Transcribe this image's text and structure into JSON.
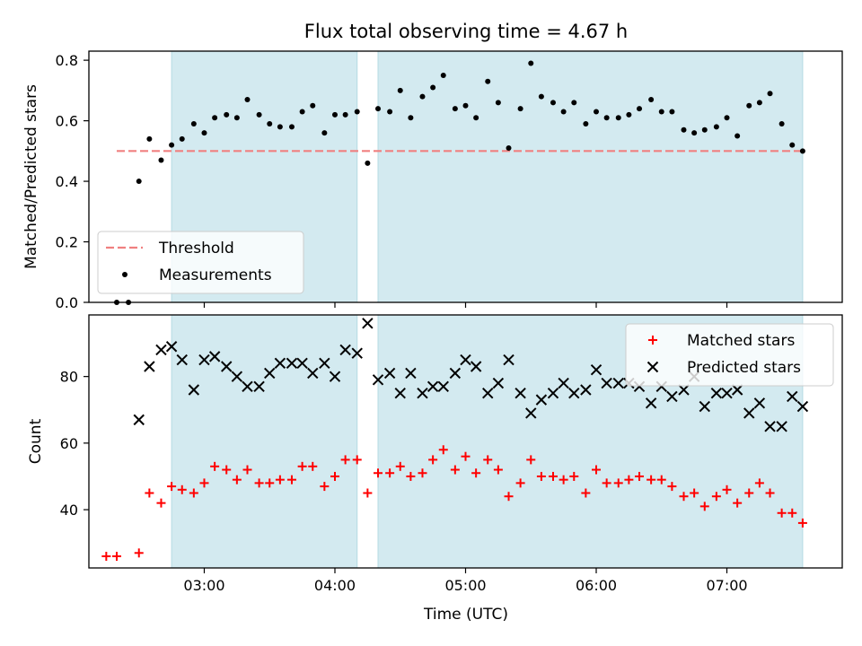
{
  "chart_data": {
    "type": "scatter",
    "title": "Flux total observing time = 4.67 h",
    "xlabel": "Time (UTC)",
    "x_tick_labels": [
      "03:00",
      "04:00",
      "05:00",
      "06:00",
      "07:00"
    ],
    "x_ticks_hours": [
      3,
      4,
      5,
      6,
      7
    ],
    "xlim_hours": [
      2.117,
      7.883
    ],
    "shaded_intervals_hours": [
      [
        2.75,
        4.17
      ],
      [
        4.33,
        7.58
      ]
    ],
    "shade_color": "#d3eaf0",
    "panels": [
      {
        "ylabel": "Matched/Predicted stars",
        "ylim": [
          0,
          0.83
        ],
        "y_tick_labels": [
          "0.0",
          "0.2",
          "0.4",
          "0.6",
          "0.8"
        ],
        "y_ticks": [
          0,
          0.2,
          0.4,
          0.6,
          0.8
        ],
        "legend_position": "lower-left",
        "legend": [
          "Threshold",
          "Measurements"
        ],
        "threshold": {
          "name": "Threshold",
          "value": 0.5,
          "x_range_hours": [
            2.33,
            7.58
          ],
          "color": "#f08080"
        },
        "series": [
          {
            "name": "Measurements",
            "marker": "dot",
            "color": "#000000",
            "x_hours": [
              2.33,
              2.42,
              2.5,
              2.58,
              2.67,
              2.75,
              2.83,
              2.92,
              3.0,
              3.08,
              3.17,
              3.25,
              3.33,
              3.42,
              3.5,
              3.58,
              3.67,
              3.75,
              3.83,
              3.92,
              4.0,
              4.08,
              4.17,
              4.25,
              4.33,
              4.42,
              4.5,
              4.58,
              4.67,
              4.75,
              4.83,
              4.92,
              5.0,
              5.08,
              5.17,
              5.25,
              5.33,
              5.42,
              5.5,
              5.58,
              5.67,
              5.75,
              5.83,
              5.92,
              6.0,
              6.08,
              6.17,
              6.25,
              6.33,
              6.42,
              6.5,
              6.58,
              6.67,
              6.75,
              6.83,
              6.92,
              7.0,
              7.08,
              7.17,
              7.25,
              7.33,
              7.42,
              7.5,
              7.58
            ],
            "y": [
              0.0,
              0.0,
              0.4,
              0.54,
              0.47,
              0.52,
              0.54,
              0.59,
              0.56,
              0.61,
              0.62,
              0.61,
              0.67,
              0.62,
              0.59,
              0.58,
              0.58,
              0.63,
              0.65,
              0.56,
              0.62,
              0.62,
              0.63,
              0.46,
              0.64,
              0.63,
              0.7,
              0.61,
              0.68,
              0.71,
              0.75,
              0.64,
              0.65,
              0.61,
              0.73,
              0.66,
              0.51,
              0.64,
              0.79,
              0.68,
              0.66,
              0.63,
              0.66,
              0.59,
              0.63,
              0.61,
              0.61,
              0.62,
              0.64,
              0.67,
              0.63,
              0.63,
              0.57,
              0.56,
              0.57,
              0.58,
              0.61,
              0.55,
              0.65,
              0.66,
              0.69,
              0.59,
              0.52,
              0.5
            ]
          }
        ]
      },
      {
        "ylabel": "Count",
        "ylim": [
          22.5,
          98.5
        ],
        "y_tick_labels": [
          "40",
          "60",
          "80"
        ],
        "y_ticks": [
          40,
          60,
          80
        ],
        "legend_position": "upper-right",
        "legend": [
          "Matched stars",
          "Predicted stars"
        ],
        "series": [
          {
            "name": "Matched stars",
            "marker": "plus",
            "color": "#ff0000",
            "x_hours": [
              2.25,
              2.33,
              2.5,
              2.58,
              2.67,
              2.75,
              2.83,
              2.92,
              3.0,
              3.08,
              3.17,
              3.25,
              3.33,
              3.42,
              3.5,
              3.58,
              3.67,
              3.75,
              3.83,
              3.92,
              4.0,
              4.08,
              4.17,
              4.25,
              4.33,
              4.42,
              4.5,
              4.58,
              4.67,
              4.75,
              4.83,
              4.92,
              5.0,
              5.08,
              5.17,
              5.25,
              5.33,
              5.42,
              5.5,
              5.58,
              5.67,
              5.75,
              5.83,
              5.92,
              6.0,
              6.08,
              6.17,
              6.25,
              6.33,
              6.42,
              6.5,
              6.58,
              6.67,
              6.75,
              6.83,
              6.92,
              7.0,
              7.08,
              7.17,
              7.25,
              7.33,
              7.42,
              7.5,
              7.58
            ],
            "y": [
              26,
              26,
              27,
              45,
              42,
              47,
              46,
              45,
              48,
              53,
              52,
              49,
              52,
              48,
              48,
              49,
              49,
              53,
              53,
              47,
              50,
              55,
              55,
              45,
              51,
              51,
              53,
              50,
              51,
              55,
              58,
              52,
              56,
              51,
              55,
              52,
              44,
              48,
              55,
              50,
              50,
              49,
              50,
              45,
              52,
              48,
              48,
              49,
              50,
              49,
              49,
              47,
              44,
              45,
              41,
              44,
              46,
              42,
              45,
              48,
              45,
              39,
              39,
              36
            ]
          },
          {
            "name": "Predicted stars",
            "marker": "cross",
            "color": "#000000",
            "x_hours": [
              2.5,
              2.58,
              2.67,
              2.75,
              2.83,
              2.92,
              3.0,
              3.08,
              3.17,
              3.25,
              3.33,
              3.42,
              3.5,
              3.58,
              3.67,
              3.75,
              3.83,
              3.92,
              4.0,
              4.08,
              4.17,
              4.25,
              4.33,
              4.42,
              4.5,
              4.58,
              4.67,
              4.75,
              4.83,
              4.92,
              5.0,
              5.08,
              5.17,
              5.25,
              5.33,
              5.42,
              5.5,
              5.58,
              5.67,
              5.75,
              5.83,
              5.92,
              6.0,
              6.08,
              6.17,
              6.25,
              6.33,
              6.42,
              6.5,
              6.58,
              6.67,
              6.75,
              6.83,
              6.92,
              7.0,
              7.08,
              7.17,
              7.25,
              7.33,
              7.42,
              7.5,
              7.58
            ],
            "y": [
              67,
              83,
              88,
              89,
              85,
              76,
              85,
              86,
              83,
              80,
              77,
              77,
              81,
              84,
              84,
              84,
              81,
              84,
              80,
              88,
              87,
              96,
              79,
              81,
              75,
              81,
              75,
              77,
              77,
              81,
              85,
              83,
              75,
              78,
              85,
              75,
              69,
              73,
              75,
              78,
              75,
              76,
              82,
              78,
              78,
              78,
              77,
              72,
              77,
              74,
              76,
              80,
              71,
              75,
              75,
              76,
              69,
              72,
              65,
              65,
              74,
              71
            ]
          }
        ]
      }
    ]
  }
}
